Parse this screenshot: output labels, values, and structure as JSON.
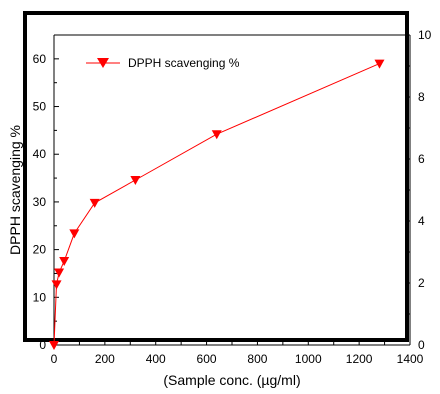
{
  "chart_data": {
    "type": "line",
    "title": "",
    "xlabel": "(Sample conc. (µg/ml)",
    "ylabel": "DPPH scavenging %",
    "xlim": [
      0,
      1400
    ],
    "ylim": [
      0,
      65
    ],
    "y2lim": [
      0,
      10
    ],
    "x_ticks": [
      "0",
      "200",
      "400",
      "600",
      "800",
      "1000",
      "1200",
      "1400"
    ],
    "y_ticks": [
      "0",
      "10",
      "20",
      "30",
      "40",
      "50",
      "60"
    ],
    "y2_ticks": [
      "0",
      "2",
      "4",
      "6",
      "8",
      "10"
    ],
    "grid": false,
    "legend_position": "top-left",
    "series": [
      {
        "name": "DPPH scavenging %",
        "color": "#ff0000",
        "marker": "down-triangle",
        "x": [
          0,
          10,
          20,
          40,
          80,
          160,
          320,
          640,
          1280
        ],
        "y": [
          0,
          12.7,
          15.2,
          17.6,
          23.4,
          29.8,
          34.6,
          44.2,
          59.0
        ]
      }
    ]
  }
}
